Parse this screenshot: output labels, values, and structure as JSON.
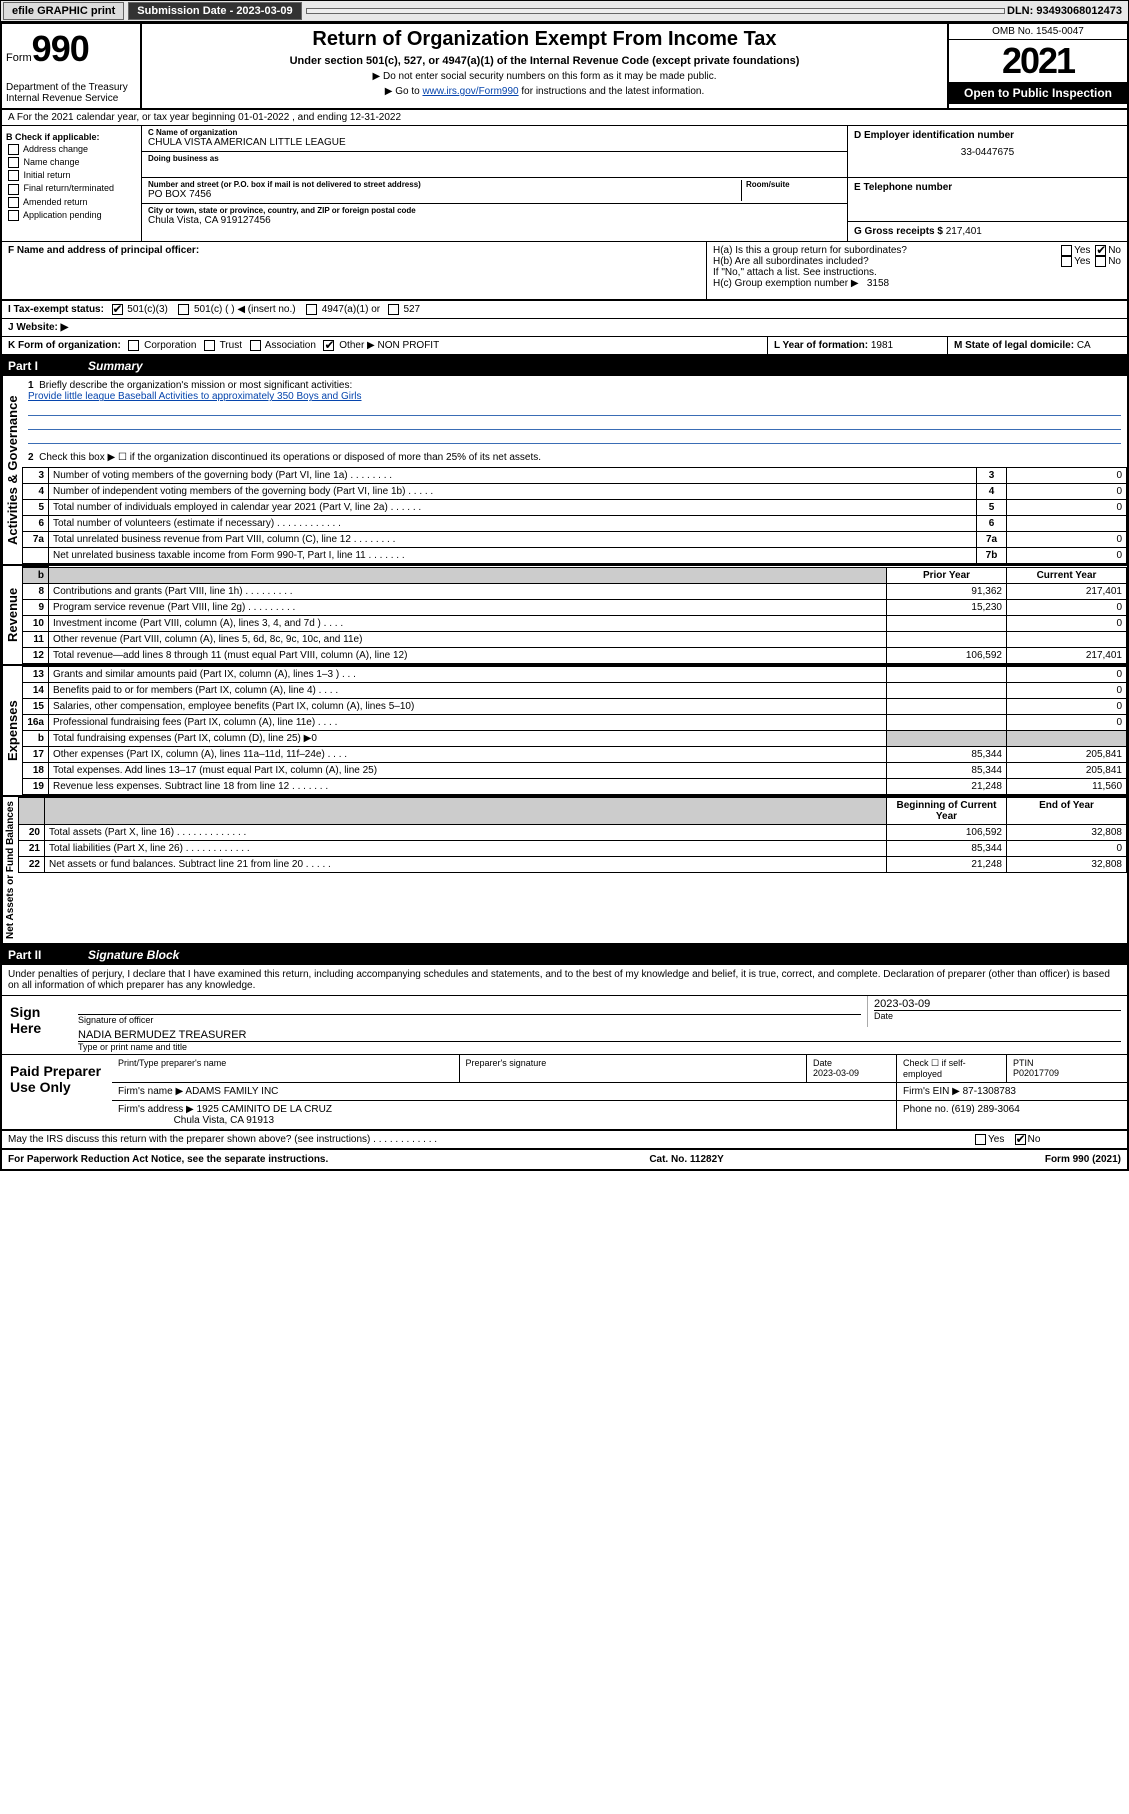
{
  "topbar": {
    "efile_label": "efile GRAPHIC print",
    "sub_date_label": "Submission Date - 2023-03-09",
    "dln_label": "DLN: 93493068012473"
  },
  "header": {
    "form_label": "Form",
    "form_num": "990",
    "dept": "Department of the Treasury Internal Revenue Service",
    "title": "Return of Organization Exempt From Income Tax",
    "sub": "Under section 501(c), 527, or 4947(a)(1) of the Internal Revenue Code (except private foundations)",
    "note1": "▶ Do not enter social security numbers on this form as it may be made public.",
    "note2_pre": "▶ Go to ",
    "note2_link": "www.irs.gov/Form990",
    "note2_post": " for instructions and the latest information.",
    "omb": "OMB No. 1545-0047",
    "year": "2021",
    "open": "Open to Public Inspection"
  },
  "row_a": "A For the 2021 calendar year, or tax year beginning 01-01-2022   , and ending 12-31-2022",
  "col_b": {
    "title": "B Check if applicable:",
    "items": [
      "Address change",
      "Name change",
      "Initial return",
      "Final return/terminated",
      "Amended return",
      "Application pending"
    ]
  },
  "col_c": {
    "name_label": "C Name of organization",
    "name": "CHULA VISTA AMERICAN LITTLE LEAGUE",
    "dba_label": "Doing business as",
    "addr_label": "Number and street (or P.O. box if mail is not delivered to street address)",
    "room_label": "Room/suite",
    "addr": "PO BOX 7456",
    "city_label": "City or town, state or province, country, and ZIP or foreign postal code",
    "city": "Chula Vista, CA  919127456"
  },
  "col_d": {
    "ein_label": "D Employer identification number",
    "ein": "33-0447675",
    "phone_label": "E Telephone number",
    "gross_label": "G Gross receipts $",
    "gross": "217,401"
  },
  "row_f": {
    "f_label": "F Name and address of principal officer:",
    "ha_label": "H(a)  Is this a group return for subordinates?",
    "hb_label": "H(b)  Are all subordinates included?",
    "hb_note": "If \"No,\" attach a list. See instructions.",
    "hc_label": "H(c)  Group exemption number ▶",
    "hc_val": "3158",
    "yes": "Yes",
    "no": "No"
  },
  "row_i": {
    "label": "I   Tax-exempt status:",
    "o1": "501(c)(3)",
    "o2": "501(c) (  ) ◀ (insert no.)",
    "o3": "4947(a)(1) or",
    "o4": "527"
  },
  "row_j": {
    "label": "J   Website: ▶"
  },
  "row_k": {
    "label": "K Form of organization:",
    "o1": "Corporation",
    "o2": "Trust",
    "o3": "Association",
    "o4": "Other ▶",
    "other_val": "NON PROFIT",
    "l_label": "L Year of formation:",
    "l_val": "1981",
    "m_label": "M State of legal domicile:",
    "m_val": "CA"
  },
  "part1": {
    "num": "Part I",
    "title": "Summary"
  },
  "summary": {
    "label_activities": "Activities & Governance",
    "label_revenue": "Revenue",
    "label_expenses": "Expenses",
    "label_netassets": "Net Assets or Fund Balances",
    "line1_label": "Briefly describe the organization's mission or most significant activities:",
    "line1_text": "Provide little league Baseball Activities to approximately 350 Boys and Girls",
    "line2": "Check this box ▶ ☐  if the organization discontinued its operations or disposed of more than 25% of its net assets.",
    "rows_top": [
      {
        "n": "3",
        "l": "Number of voting members of the governing body (Part VI, line 1a)   .    .    .    .    .    .    .    .",
        "box": "3",
        "v": "0"
      },
      {
        "n": "4",
        "l": "Number of independent voting members of the governing body (Part VI, line 1b)   .    .    .    .    .",
        "box": "4",
        "v": "0"
      },
      {
        "n": "5",
        "l": "Total number of individuals employed in calendar year 2021 (Part V, line 2a)   .    .    .    .    .    .",
        "box": "5",
        "v": "0"
      },
      {
        "n": "6",
        "l": "Total number of volunteers (estimate if necessary)   .    .    .    .    .    .    .    .    .    .    .    .",
        "box": "6",
        "v": ""
      },
      {
        "n": "7a",
        "l": "Total unrelated business revenue from Part VIII, column (C), line 12   .    .    .    .    .    .    .    .",
        "box": "7a",
        "v": "0"
      },
      {
        "n": "",
        "l": "Net unrelated business taxable income from Form 990-T, Part I, line 11   .    .    .    .    .    .    .",
        "box": "7b",
        "v": "0"
      }
    ],
    "col_hdr_prior": "Prior Year",
    "col_hdr_current": "Current Year",
    "rows_rev": [
      {
        "n": "8",
        "l": "Contributions and grants (Part VIII, line 1h)   .    .    .    .    .    .    .    .    .",
        "p": "91,362",
        "c": "217,401"
      },
      {
        "n": "9",
        "l": "Program service revenue (Part VIII, line 2g)   .    .    .    .    .    .    .    .    .",
        "p": "15,230",
        "c": "0"
      },
      {
        "n": "10",
        "l": "Investment income (Part VIII, column (A), lines 3, 4, and 7d )   .    .    .    .",
        "p": "",
        "c": "0"
      },
      {
        "n": "11",
        "l": "Other revenue (Part VIII, column (A), lines 5, 6d, 8c, 9c, 10c, and 11e)",
        "p": "",
        "c": ""
      },
      {
        "n": "12",
        "l": "Total revenue—add lines 8 through 11 (must equal Part VIII, column (A), line 12)",
        "p": "106,592",
        "c": "217,401"
      }
    ],
    "rows_exp": [
      {
        "n": "13",
        "l": "Grants and similar amounts paid (Part IX, column (A), lines 1–3 )   .    .    .",
        "p": "",
        "c": "0"
      },
      {
        "n": "14",
        "l": "Benefits paid to or for members (Part IX, column (A), line 4)   .    .    .    .",
        "p": "",
        "c": "0"
      },
      {
        "n": "15",
        "l": "Salaries, other compensation, employee benefits (Part IX, column (A), lines 5–10)",
        "p": "",
        "c": "0"
      },
      {
        "n": "16a",
        "l": "Professional fundraising fees (Part IX, column (A), line 11e)   .    .    .    .",
        "p": "",
        "c": "0"
      },
      {
        "n": "b",
        "l": "Total fundraising expenses (Part IX, column (D), line 25) ▶0",
        "p": "SHADE",
        "c": "SHADE"
      },
      {
        "n": "17",
        "l": "Other expenses (Part IX, column (A), lines 11a–11d, 11f–24e)   .    .    .    .",
        "p": "85,344",
        "c": "205,841"
      },
      {
        "n": "18",
        "l": "Total expenses. Add lines 13–17 (must equal Part IX, column (A), line 25)",
        "p": "85,344",
        "c": "205,841"
      },
      {
        "n": "19",
        "l": "Revenue less expenses. Subtract line 18 from line 12   .     .    .    .    .    .    .",
        "p": "21,248",
        "c": "11,560"
      }
    ],
    "col_hdr_begin": "Beginning of Current Year",
    "col_hdr_end": "End of Year",
    "rows_net": [
      {
        "n": "20",
        "l": "Total assets (Part X, line 16)   .    .    .    .    .    .    .    .    .    .    .    .    .",
        "p": "106,592",
        "c": "32,808"
      },
      {
        "n": "21",
        "l": "Total liabilities (Part X, line 26)   .    .    .    .    .    .    .    .    .    .    .    .",
        "p": "85,344",
        "c": "0"
      },
      {
        "n": "22",
        "l": "Net assets or fund balances. Subtract line 21 from line 20   .    .    .    .    .",
        "p": "21,248",
        "c": "32,808"
      }
    ]
  },
  "part2": {
    "num": "Part II",
    "title": "Signature Block"
  },
  "penalties": "Under penalties of perjury, I declare that I have examined this return, including accompanying schedules and statements, and to the best of my knowledge and belief, it is true, correct, and complete. Declaration of preparer (other than officer) is based on all information of which preparer has any knowledge.",
  "sign": {
    "here": "Sign Here",
    "sig_officer": "Signature of officer",
    "date": "Date",
    "date_val": "2023-03-09",
    "name": "NADIA BERMUDEZ  TREASURER",
    "name_label": "Type or print name and title"
  },
  "preparer": {
    "label": "Paid Preparer Use Only",
    "c1": "Print/Type preparer's name",
    "c2": "Preparer's signature",
    "c3": "Date",
    "c3_val": "2023-03-09",
    "c4": "Check ☐ if self-employed",
    "c5": "PTIN",
    "ptin": "P02017709",
    "firm_name_label": "Firm's name    ▶",
    "firm_name": "ADAMS FAMILY INC",
    "firm_ein_label": "Firm's EIN ▶",
    "firm_ein": "87-1308783",
    "firm_addr_label": "Firm's address ▶",
    "firm_addr1": "1925 CAMINITO DE LA CRUZ",
    "firm_addr2": "Chula Vista, CA  91913",
    "phone_label": "Phone no.",
    "phone": "(619) 289-3064"
  },
  "discuss": {
    "q": "May the IRS discuss this return with the preparer shown above? (see instructions)    .    .    .    .    .    .    .    .    .    .    .    .",
    "yes": "Yes",
    "no": "No"
  },
  "footer": {
    "left": "For Paperwork Reduction Act Notice, see the separate instructions.",
    "mid": "Cat. No. 11282Y",
    "right": "Form 990 (2021)"
  }
}
